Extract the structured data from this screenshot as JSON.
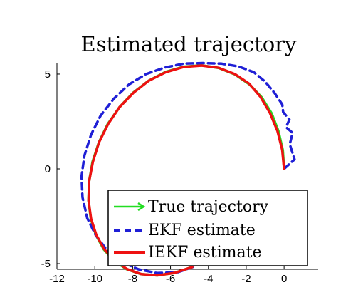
{
  "chart_data": {
    "type": "line",
    "title": "Estimated trajectory",
    "xlabel": "",
    "ylabel": "",
    "xlim": [
      -12,
      1.8
    ],
    "ylim": [
      -5.3,
      5.6
    ],
    "xticks": [
      -12,
      -10,
      -8,
      -6,
      -4,
      -2,
      0
    ],
    "yticks": [
      -5,
      0,
      5
    ],
    "grid": false,
    "legend_position": "bottom-right",
    "series": [
      {
        "name": "True trajectory",
        "color": "#22dd22",
        "dash": "solid",
        "x": [
          0,
          -0.07,
          -0.3,
          -0.66,
          -1.17,
          -1.82,
          -2.59,
          -3.45,
          -4.36,
          -5.31,
          -6.25,
          -7.14,
          -7.97,
          -8.7,
          -9.32,
          -9.79,
          -10.12,
          -10.3,
          -10.33,
          -10.21,
          -9.94,
          -9.53,
          -8.99,
          -8.33,
          -7.56,
          -6.71,
          -5.8,
          -4.85
        ],
        "y": [
          0,
          0.99,
          1.99,
          2.93,
          3.76,
          4.45,
          4.98,
          5.32,
          5.46,
          5.39,
          5.12,
          4.66,
          4.02,
          3.25,
          2.36,
          1.39,
          0.37,
          -0.66,
          -1.67,
          -2.63,
          -3.49,
          -4.24,
          -4.84,
          -5.29,
          -5.55,
          -5.62,
          -5.49,
          -5.18
        ]
      },
      {
        "name": "EKF estimate",
        "color": "#1f1fd6",
        "dash": "dashed",
        "x": [
          0,
          0.55,
          0.3,
          0.45,
          0.1,
          0.28,
          -0.05,
          -0.1,
          -0.5,
          -1.0,
          -1.6,
          -2.4,
          -3.3,
          -4.3,
          -5.3,
          -6.3,
          -7.3,
          -8.2,
          -9.0,
          -9.7,
          -10.2,
          -10.55,
          -10.7,
          -10.65,
          -10.4,
          -9.95,
          -9.35,
          -8.6,
          -7.7,
          -6.7,
          -5.6,
          -4.6
        ],
        "y": [
          0.0,
          0.5,
          1.3,
          1.9,
          2.2,
          2.6,
          3.0,
          3.4,
          4.0,
          4.6,
          5.1,
          5.4,
          5.55,
          5.58,
          5.55,
          5.35,
          5.0,
          4.45,
          3.7,
          2.8,
          1.8,
          0.7,
          -0.4,
          -1.5,
          -2.6,
          -3.5,
          -4.3,
          -4.9,
          -5.3,
          -5.5,
          -5.45,
          -5.1
        ]
      },
      {
        "name": "IEKF estimate",
        "color": "#ee1111",
        "dash": "solid",
        "x": [
          0,
          -0.1,
          -0.35,
          -0.75,
          -1.25,
          -1.85,
          -2.6,
          -3.45,
          -4.35,
          -5.3,
          -6.25,
          -7.15,
          -7.95,
          -8.7,
          -9.3,
          -9.78,
          -10.1,
          -10.3,
          -10.33,
          -10.2,
          -9.92,
          -9.5,
          -8.95,
          -8.3,
          -7.55,
          -6.7,
          -5.8,
          -4.85
        ],
        "y": [
          0,
          1.0,
          2.0,
          2.95,
          3.8,
          4.5,
          5.0,
          5.33,
          5.45,
          5.38,
          5.1,
          4.65,
          4.02,
          3.25,
          2.36,
          1.39,
          0.37,
          -0.66,
          -1.67,
          -2.62,
          -3.49,
          -4.24,
          -4.84,
          -5.29,
          -5.55,
          -5.62,
          -5.49,
          -5.18
        ]
      }
    ]
  }
}
